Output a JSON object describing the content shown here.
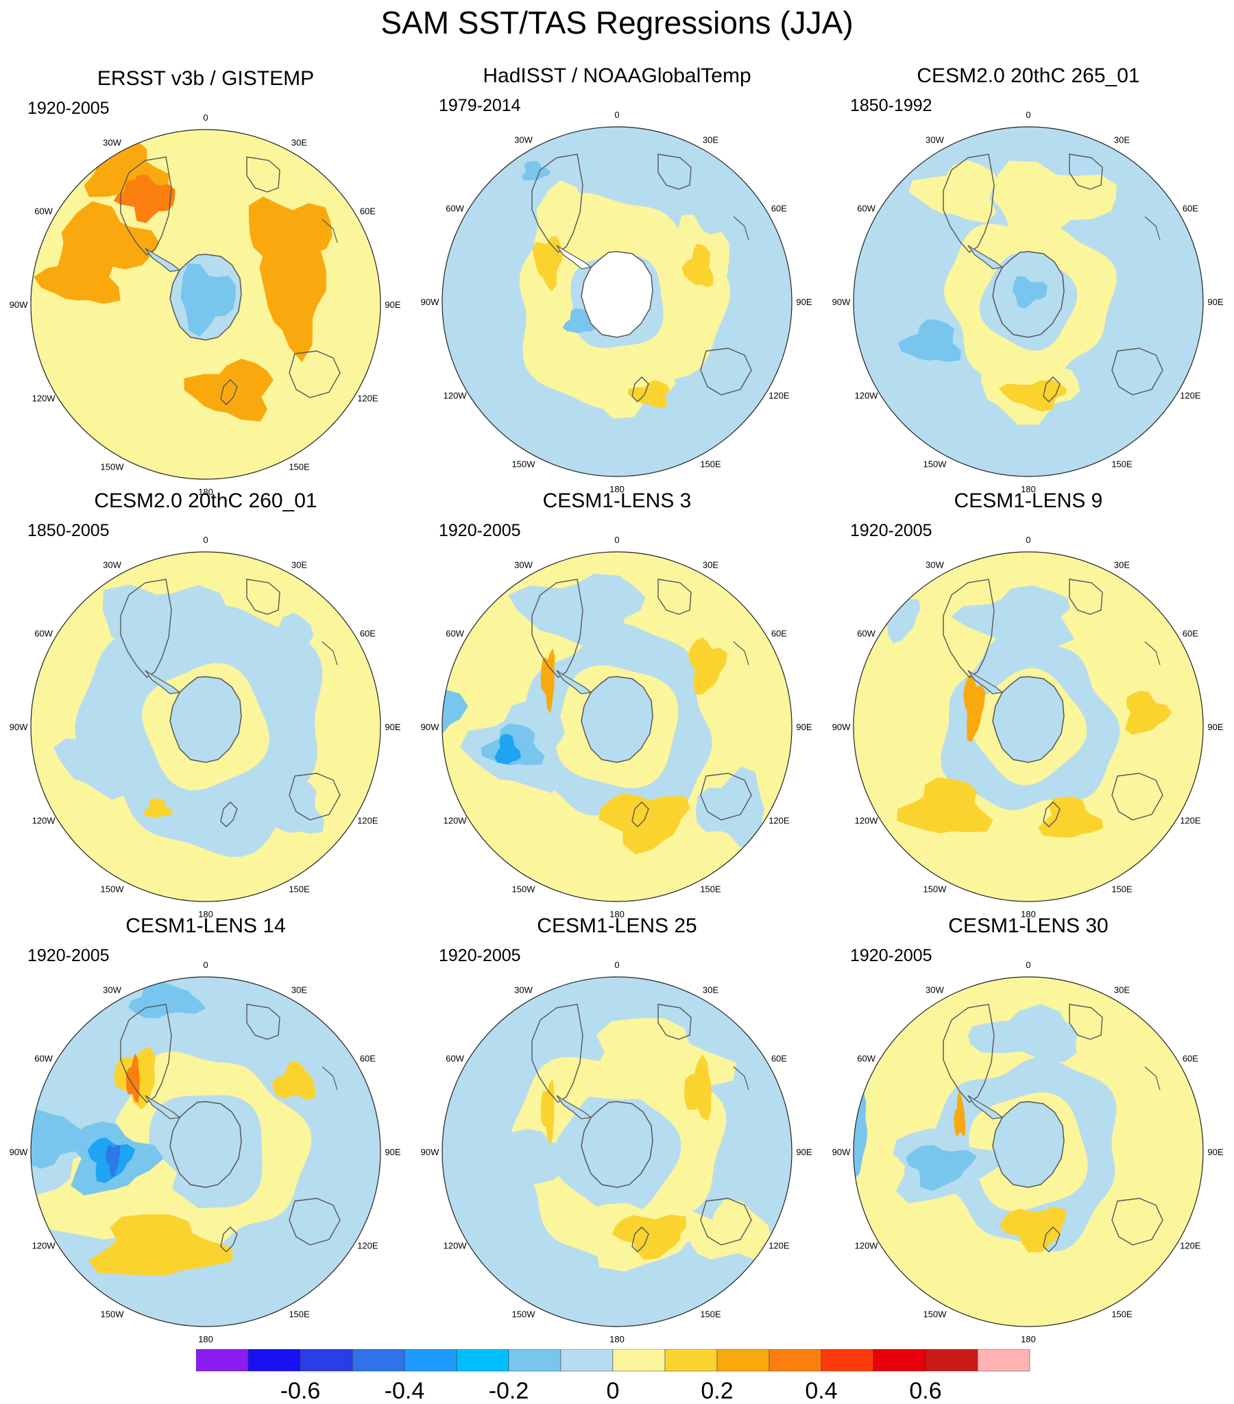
{
  "title": "SAM SST/TAS Regressions (JJA)",
  "colors": {
    "ocean_light_blue": "#b6dcf0",
    "blue_mid": "#78c6ee",
    "blue_strong": "#1ea4f2",
    "blue_deep": "#2f78e8",
    "yellow_light": "#fbf59c",
    "yellow_gold": "#fbd32e",
    "orange": "#f9a90e",
    "orange_dark": "#fb7f0e",
    "antarctica": "#b6dcf0",
    "coast": "#555555"
  },
  "panels": [
    {
      "title": "ERSST v3b / GISTEMP",
      "years": "1920-2005"
    },
    {
      "title": "HadISST / NOAAGlobalTemp",
      "years": "1979-2014"
    },
    {
      "title": "CESM2.0 20thC 265_01",
      "years": "1850-1992"
    },
    {
      "title": "CESM2.0 20thC 260_01",
      "years": "1850-2005"
    },
    {
      "title": "CESM1-LENS 3",
      "years": "1920-2005"
    },
    {
      "title": "CESM1-LENS 9",
      "years": "1920-2005"
    },
    {
      "title": "CESM1-LENS 14",
      "years": "1920-2005"
    },
    {
      "title": "CESM1-LENS 25",
      "years": "1920-2005"
    },
    {
      "title": "CESM1-LENS 30",
      "years": "1920-2005"
    }
  ],
  "longitude_labels": [
    "0",
    "30E",
    "60E",
    "90E",
    "120E",
    "150E",
    "180",
    "150W",
    "120W",
    "90W",
    "60W",
    "30W"
  ],
  "colorbar": {
    "colors": [
      "#8b1cf2",
      "#1a10f6",
      "#2a3ee6",
      "#3072e8",
      "#1e9aff",
      "#00bfff",
      "#78c6ee",
      "#b6dcf0",
      "#fbf59c",
      "#fbd32e",
      "#f9a90e",
      "#fb7f0e",
      "#ff3a0a",
      "#e8000b",
      "#cc1a1a",
      "#ffb3b3"
    ],
    "labels": [
      "-0.6",
      "-0.4",
      "-0.2",
      "0",
      "0.2",
      "0.4",
      "0.6"
    ]
  }
}
